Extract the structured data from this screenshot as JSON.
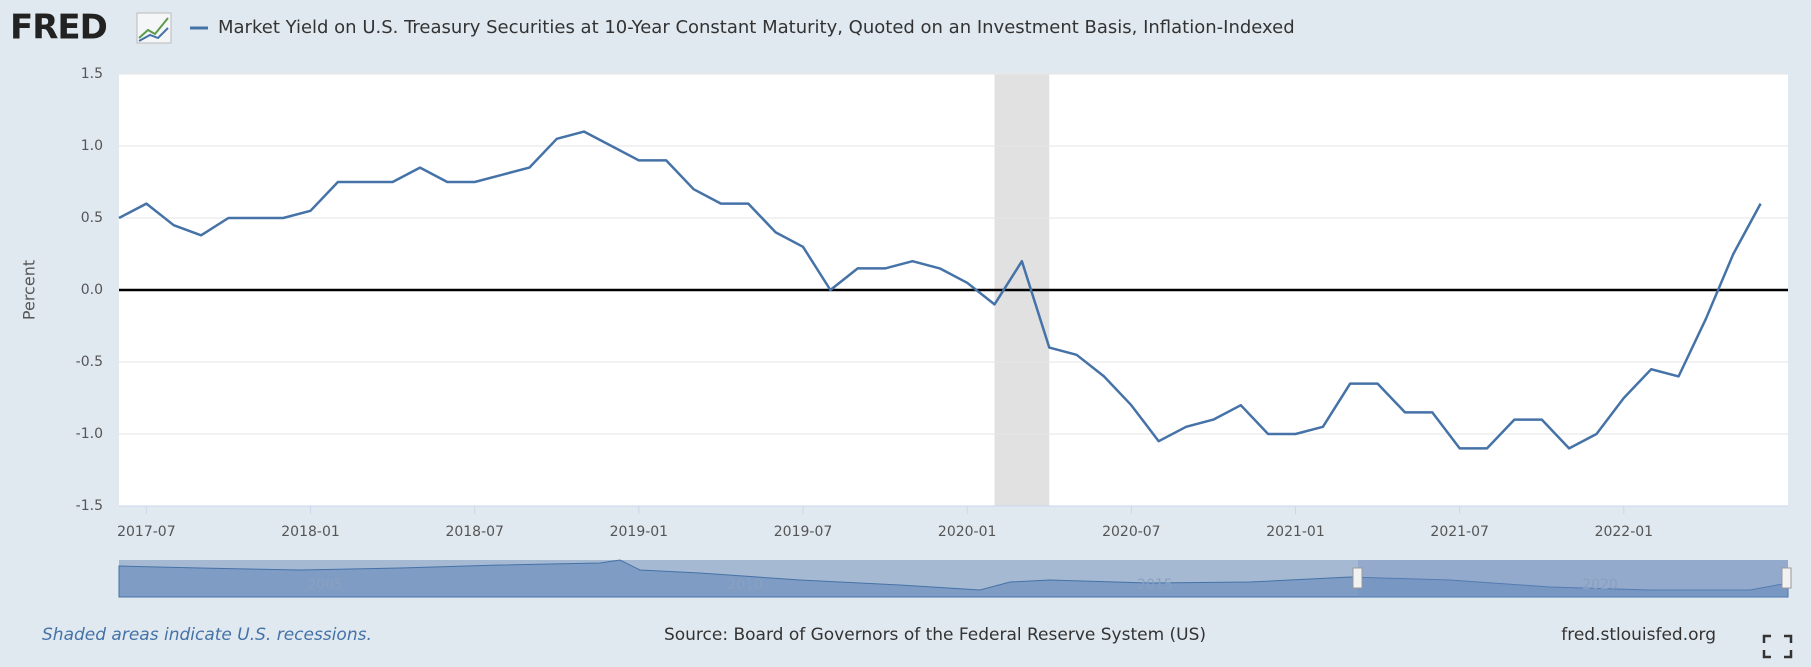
{
  "logo": "FRED",
  "chart_data": {
    "type": "line",
    "series": [
      {
        "name": "Market Yield on U.S. Treasury Securities at 10-Year Constant Maturity, Quoted on an Investment Basis, Inflation-Indexed",
        "color": "#4572a7",
        "values": [
          0.5,
          0.6,
          0.45,
          0.38,
          0.5,
          0.5,
          0.5,
          0.55,
          0.75,
          0.75,
          0.75,
          0.85,
          0.75,
          0.75,
          0.8,
          0.85,
          1.05,
          1.1,
          1.0,
          0.9,
          0.9,
          0.7,
          0.6,
          0.6,
          0.4,
          0.3,
          0.0,
          0.15,
          0.15,
          0.2,
          0.15,
          0.05,
          -0.1,
          0.2,
          -0.4,
          -0.45,
          -0.6,
          -0.8,
          -1.05,
          -0.95,
          -0.9,
          -0.8,
          -1.0,
          -1.0,
          -0.95,
          -0.65,
          -0.65,
          -0.85,
          -0.85,
          -1.1,
          -1.1,
          -0.9,
          -0.9,
          -1.1,
          -1.0,
          -0.75,
          -0.55,
          -0.6,
          -0.2,
          0.25,
          0.6
        ]
      }
    ],
    "x": [
      "2017-06",
      "2017-07",
      "2017-08",
      "2017-09",
      "2017-10",
      "2017-11",
      "2017-12",
      "2018-01",
      "2018-02",
      "2018-03",
      "2018-04",
      "2018-05",
      "2018-06",
      "2018-07",
      "2018-08",
      "2018-09",
      "2018-10",
      "2018-11",
      "2018-12",
      "2019-01",
      "2019-02",
      "2019-03",
      "2019-04",
      "2019-05",
      "2019-06",
      "2019-07",
      "2019-08",
      "2019-09",
      "2019-10",
      "2019-11",
      "2019-12",
      "2020-01",
      "2020-02",
      "2020-03",
      "2020-04",
      "2020-05",
      "2020-06",
      "2020-07",
      "2020-08",
      "2020-09",
      "2020-10",
      "2020-11",
      "2020-12",
      "2021-01",
      "2021-02",
      "2021-03",
      "2021-04",
      "2021-05",
      "2021-06",
      "2021-07",
      "2021-08",
      "2021-09",
      "2021-10",
      "2021-11",
      "2021-12",
      "2022-01",
      "2022-02",
      "2022-03",
      "2022-04",
      "2022-05",
      "2022-06"
    ],
    "xlim": [
      "2017-06",
      "2022-07"
    ],
    "xticks": [
      "2017-07",
      "2018-01",
      "2018-07",
      "2019-01",
      "2019-07",
      "2020-01",
      "2020-07",
      "2021-01",
      "2021-07",
      "2022-01"
    ],
    "ylim": [
      -1.5,
      1.5
    ],
    "yticks": [
      -1.5,
      {
        "value": -1,
        "label": "-1.0"
      },
      -0.5,
      {
        "value": 0,
        "label": "0.0"
      },
      0.5,
      {
        "value": 1,
        "label": "1.0"
      },
      1.5
    ],
    "ylabel": "Percent",
    "grid": true,
    "recessions": [
      {
        "start": "2020-02",
        "end": "2020-04"
      }
    ],
    "navigator_labels": [
      "2005",
      "2010",
      "2015",
      "2020"
    ]
  },
  "footer": {
    "note": "Shaded areas indicate U.S. recessions.",
    "source": "Source: Board of Governors of the Federal Reserve System (US)",
    "site": "fred.stlouisfed.org"
  }
}
